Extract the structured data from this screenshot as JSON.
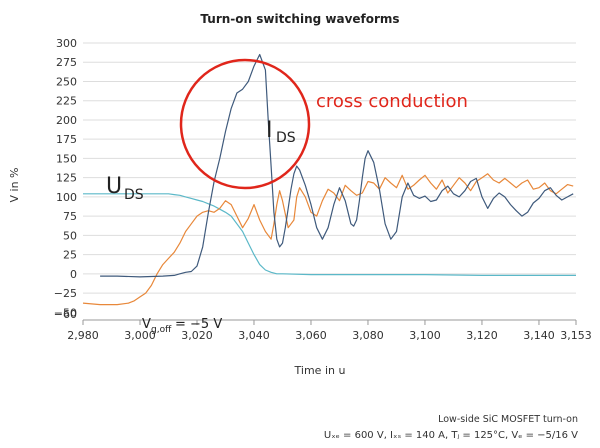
{
  "chart_data": {
    "type": "line",
    "title": "Turn-on switching waveforms",
    "xlabel": "Time in u",
    "ylabel": "V in %",
    "xlim": [
      2980,
      3153
    ],
    "ylim": [
      -60,
      300
    ],
    "xticks": [
      2980,
      3000,
      3020,
      3040,
      3060,
      3080,
      3100,
      3120,
      3140,
      3153
    ],
    "xtick_labels": [
      "2,980",
      "3,000",
      "3,020",
      "3,040",
      "3,060",
      "3,080",
      "3,100",
      "3,120",
      "3,140",
      "3,153"
    ],
    "yticks": [
      -60,
      -50,
      -25,
      0,
      25,
      50,
      75,
      100,
      125,
      150,
      175,
      200,
      225,
      250,
      275,
      300
    ],
    "grid": true,
    "series": [
      {
        "name": "I_DS",
        "color": "#3f5a7c",
        "x": [
          2986,
          2992,
          3000,
          3008,
          3012,
          3014,
          3016,
          3018,
          3020,
          3022,
          3024,
          3026,
          3028,
          3030,
          3032,
          3034,
          3036,
          3038,
          3040,
          3042,
          3044,
          3045,
          3046,
          3047,
          3048,
          3049,
          3050,
          3051,
          3052,
          3053,
          3054,
          3055,
          3056,
          3058,
          3060,
          3062,
          3064,
          3066,
          3068,
          3070,
          3072,
          3074,
          3075,
          3076,
          3077,
          3078,
          3079,
          3080,
          3082,
          3084,
          3086,
          3088,
          3090,
          3092,
          3094,
          3096,
          3098,
          3100,
          3102,
          3104,
          3106,
          3108,
          3110,
          3112,
          3114,
          3116,
          3118,
          3120,
          3122,
          3124,
          3126,
          3128,
          3130,
          3132,
          3134,
          3136,
          3138,
          3140,
          3142,
          3144,
          3146,
          3148,
          3150,
          3152
        ],
        "y": [
          -3,
          -3,
          -4,
          -3,
          -2,
          0,
          2,
          3,
          10,
          35,
          80,
          120,
          150,
          185,
          215,
          235,
          240,
          250,
          270,
          285,
          265,
          200,
          140,
          80,
          45,
          35,
          40,
          60,
          85,
          110,
          130,
          140,
          135,
          115,
          90,
          60,
          45,
          60,
          90,
          112,
          95,
          65,
          62,
          70,
          95,
          125,
          150,
          160,
          145,
          110,
          65,
          45,
          55,
          100,
          118,
          102,
          98,
          101,
          94,
          96,
          108,
          114,
          104,
          100,
          108,
          120,
          124,
          100,
          85,
          98,
          105,
          100,
          90,
          82,
          75,
          80,
          92,
          98,
          108,
          112,
          102,
          96,
          100,
          104
        ]
      },
      {
        "name": "U_DS",
        "color": "#e8883a",
        "x": [
          2980,
          2986,
          2992,
          2996,
          2998,
          3000,
          3002,
          3004,
          3006,
          3008,
          3010,
          3012,
          3014,
          3016,
          3018,
          3020,
          3022,
          3024,
          3026,
          3028,
          3030,
          3032,
          3034,
          3036,
          3038,
          3040,
          3042,
          3044,
          3046,
          3047,
          3048,
          3049,
          3050,
          3052,
          3054,
          3055,
          3056,
          3058,
          3060,
          3062,
          3064,
          3066,
          3068,
          3070,
          3072,
          3074,
          3076,
          3078,
          3080,
          3082,
          3084,
          3086,
          3088,
          3090,
          3092,
          3094,
          3096,
          3098,
          3100,
          3102,
          3104,
          3106,
          3108,
          3110,
          3112,
          3114,
          3116,
          3118,
          3120,
          3122,
          3124,
          3126,
          3128,
          3130,
          3132,
          3134,
          3136,
          3138,
          3140,
          3142,
          3144,
          3146,
          3148,
          3150,
          3152
        ],
        "y": [
          -38,
          -40,
          -40,
          -38,
          -35,
          -30,
          -25,
          -15,
          0,
          12,
          20,
          28,
          40,
          55,
          65,
          75,
          80,
          82,
          80,
          85,
          95,
          90,
          75,
          60,
          72,
          90,
          70,
          55,
          45,
          65,
          90,
          108,
          95,
          60,
          70,
          100,
          112,
          100,
          80,
          75,
          95,
          110,
          105,
          95,
          115,
          108,
          102,
          105,
          120,
          118,
          110,
          125,
          118,
          112,
          128,
          110,
          115,
          122,
          128,
          118,
          110,
          122,
          105,
          115,
          125,
          118,
          108,
          120,
          125,
          130,
          122,
          118,
          124,
          118,
          112,
          118,
          122,
          110,
          112,
          118,
          108,
          104,
          110,
          116,
          114
        ]
      },
      {
        "name": "V_g",
        "color": "#5bb8c8",
        "x": [
          2980,
          2990,
          3000,
          3010,
          3012,
          3014,
          3016,
          3018,
          3020,
          3022,
          3024,
          3026,
          3028,
          3030,
          3032,
          3034,
          3036,
          3038,
          3040,
          3042,
          3044,
          3046,
          3048,
          3050,
          3060,
          3080,
          3100,
          3120,
          3140,
          3153
        ],
        "y": [
          104,
          104,
          104,
          104,
          103,
          102,
          100,
          98,
          96,
          94,
          91,
          88,
          84,
          80,
          75,
          65,
          55,
          40,
          25,
          12,
          5,
          2,
          0,
          0,
          -1,
          -1,
          -1,
          -2,
          -2,
          -2
        ]
      }
    ],
    "annotations": {
      "ids_main": "I",
      "ids_sub": "DS",
      "uds_main": "U",
      "uds_sub": "DS",
      "cross_conduction": "cross conduction",
      "vgoff_main": "V",
      "vgoff_sub": "g,off",
      "vgoff_value": "= −5 V"
    }
  },
  "footnote_line1": "Low-side SiC MOSFET turn-on",
  "footnote_line2": "Uₓₑ = 600 V, Iₓₛ = 140 A, Tⱼ = 125°C, Vₑ = −5/16 V"
}
